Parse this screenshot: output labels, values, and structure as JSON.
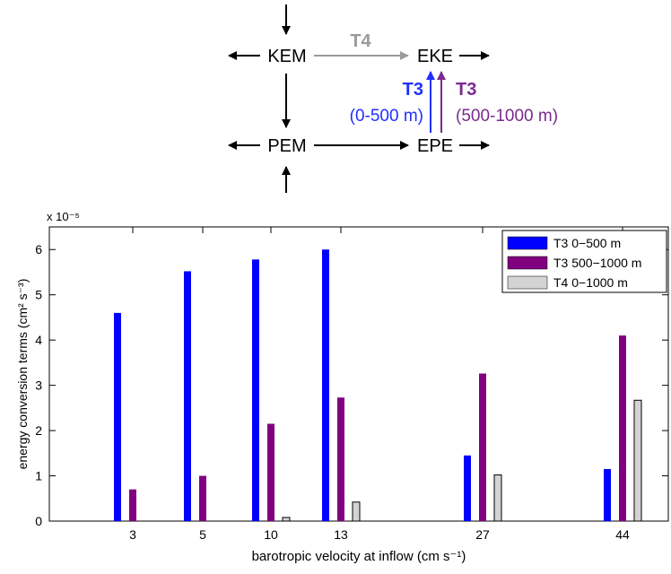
{
  "diagram": {
    "nodes": {
      "kem": "KEM",
      "eke": "EKE",
      "pem": "PEM",
      "epe": "EPE"
    },
    "t4_label": "T4",
    "t3_left_label": "T3",
    "t3_left_range": "(0-500 m)",
    "t3_right_label": "T3",
    "t3_right_range": "(500-1000 m)",
    "colors": {
      "t3_shallow": "#1f2fff",
      "t3_deep": "#7b2a8e",
      "t4": "#9a9a9a"
    }
  },
  "chart_data": {
    "type": "bar",
    "categories": [
      "3",
      "5",
      "10",
      "13",
      "27",
      "44"
    ],
    "x": [
      3,
      5,
      10,
      13,
      27,
      44
    ],
    "series": [
      {
        "name": "T3 0−500 m",
        "color": "#0000ff",
        "values": [
          4.6,
          5.52,
          5.78,
          6.0,
          1.45,
          1.15
        ]
      },
      {
        "name": "T3 500−1000 m",
        "color": "#800080",
        "values": [
          0.7,
          1.0,
          2.15,
          2.73,
          3.26,
          4.1
        ]
      },
      {
        "name": "T4 0−1000 m",
        "color": "#d3d3d3",
        "values": [
          0.0,
          0.0,
          0.08,
          0.42,
          1.02,
          2.67
        ]
      }
    ],
    "xlabel": "barotropic velocity at inflow (cm s⁻¹)",
    "ylabel": "energy conversion terms (cm² s⁻³)",
    "y_multiplier": "x 10⁻⁵",
    "yticks": [
      "0",
      "1",
      "2",
      "3",
      "4",
      "5",
      "6"
    ],
    "ylim": [
      0,
      6.5
    ],
    "legend_position": "top-right",
    "grid": false
  }
}
